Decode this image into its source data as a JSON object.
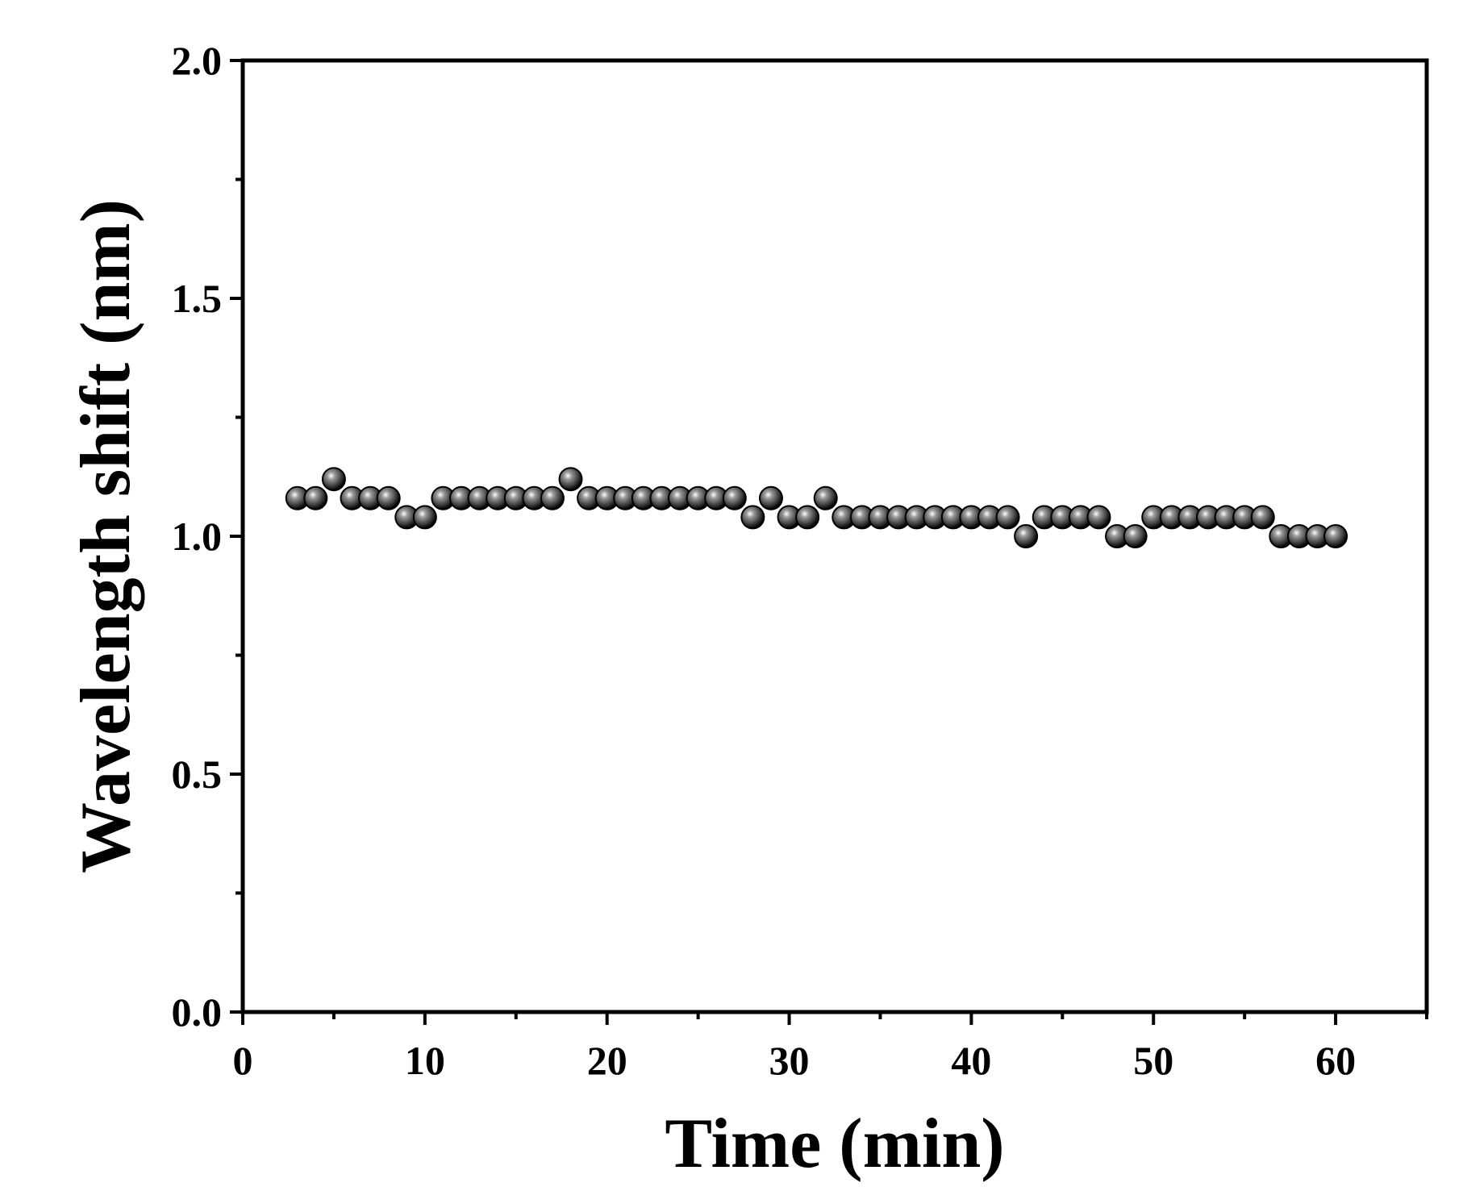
{
  "chart_data": {
    "type": "scatter",
    "title": "",
    "xlabel": "Time (min)",
    "ylabel": "Wavelength shift (nm)",
    "xlim": [
      0,
      65
    ],
    "ylim": [
      0.0,
      2.0
    ],
    "xticks": [
      0,
      10,
      20,
      30,
      40,
      50,
      60
    ],
    "xtick_labels": [
      "0",
      "10",
      "20",
      "30",
      "40",
      "50",
      "60"
    ],
    "yticks": [
      0.0,
      0.5,
      1.0,
      1.5,
      2.0
    ],
    "ytick_labels": [
      "0.0",
      "0.5",
      "1.0",
      "1.5",
      "2.0"
    ],
    "grid": false,
    "legend": "none",
    "marker_color": "#1a1a1a",
    "series": [
      {
        "x": [
          3,
          4,
          5,
          6,
          7,
          8,
          9,
          10,
          11,
          12,
          13,
          14,
          15,
          16,
          17,
          18,
          19,
          20,
          21,
          22,
          23,
          24,
          25,
          26,
          27,
          28,
          29,
          30,
          31,
          32,
          33,
          34,
          35,
          36,
          37,
          38,
          39,
          40,
          41,
          42,
          43,
          44,
          45,
          46,
          47,
          48,
          49,
          50,
          51,
          52,
          53,
          54,
          55,
          56,
          57,
          58,
          59,
          60
        ],
        "y": [
          1.08,
          1.08,
          1.12,
          1.08,
          1.08,
          1.08,
          1.04,
          1.04,
          1.08,
          1.08,
          1.08,
          1.08,
          1.08,
          1.08,
          1.08,
          1.12,
          1.08,
          1.08,
          1.08,
          1.08,
          1.08,
          1.08,
          1.08,
          1.08,
          1.08,
          1.04,
          1.08,
          1.04,
          1.04,
          1.08,
          1.04,
          1.04,
          1.04,
          1.04,
          1.04,
          1.04,
          1.04,
          1.04,
          1.04,
          1.04,
          1.0,
          1.04,
          1.04,
          1.04,
          1.04,
          1.0,
          1.0,
          1.04,
          1.04,
          1.04,
          1.04,
          1.04,
          1.04,
          1.04,
          1.0,
          1.0,
          1.0,
          1.0
        ]
      }
    ]
  }
}
